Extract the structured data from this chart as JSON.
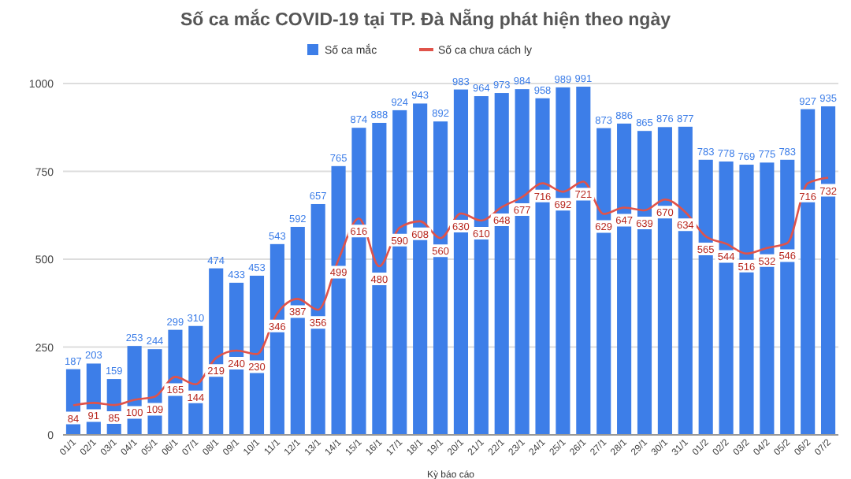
{
  "chart_data": {
    "type": "bar",
    "title": "Số ca mắc COVID-19 tại TP. Đà Nẵng phát hiện theo ngày",
    "xlabel": "Kỳ báo cáo",
    "categories": [
      "01/1",
      "02/1",
      "03/1",
      "04/1",
      "05/1",
      "06/1",
      "07/1",
      "08/1",
      "09/1",
      "10/1",
      "11/1",
      "12/1",
      "13/1",
      "14/1",
      "15/1",
      "16/1",
      "17/1",
      "18/1",
      "19/1",
      "20/1",
      "21/1",
      "22/1",
      "23/1",
      "24/1",
      "25/1",
      "26/1",
      "27/1",
      "28/1",
      "29/1",
      "30/1",
      "31/1",
      "01/2",
      "02/2",
      "03/2",
      "04/2",
      "05/2",
      "06/2",
      "07/2"
    ],
    "series": [
      {
        "name": "Số ca mắc",
        "color": "#3d7ee8",
        "values": [
          187,
          203,
          159,
          253,
          244,
          299,
          310,
          474,
          433,
          453,
          543,
          592,
          657,
          765,
          874,
          888,
          924,
          943,
          892,
          983,
          964,
          973,
          984,
          958,
          989,
          991,
          873,
          886,
          865,
          876,
          877,
          783,
          778,
          769,
          775,
          783,
          927,
          935
        ]
      },
      {
        "name": "Số ca chưa cách ly",
        "type": "line",
        "color": "#e0534a",
        "values": [
          84,
          91,
          85,
          100,
          109,
          165,
          144,
          219,
          240,
          230,
          346,
          387,
          356,
          499,
          616,
          480,
          590,
          608,
          560,
          630,
          610,
          648,
          677,
          716,
          692,
          721,
          629,
          647,
          639,
          670,
          634,
          565,
          544,
          516,
          532,
          546,
          716,
          732
        ]
      }
    ],
    "ylim": [
      0,
      1000
    ],
    "yticks": [
      0,
      250,
      500,
      750,
      1000
    ],
    "grid": "y",
    "legend": "top",
    "data_labels": true,
    "marker": "none",
    "line_style": "solid"
  }
}
